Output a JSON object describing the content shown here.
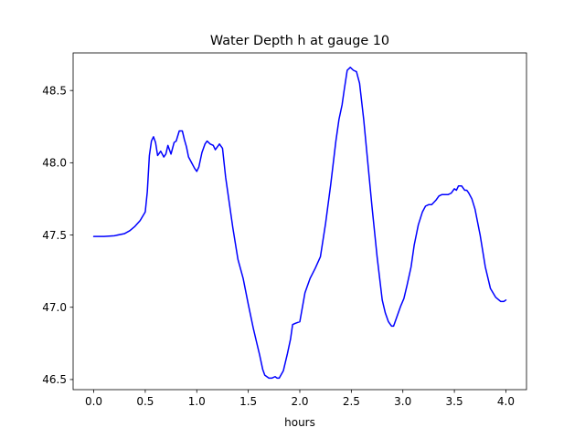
{
  "chart_data": {
    "type": "line",
    "title": "Water Depth h at gauge 10",
    "xlabel": "hours",
    "ylabel": "",
    "xlim": [
      -0.2,
      4.2
    ],
    "ylim": [
      46.43,
      48.76
    ],
    "xticks": [
      0.0,
      0.5,
      1.0,
      1.5,
      2.0,
      2.5,
      3.0,
      3.5,
      4.0
    ],
    "xtick_labels": [
      "0.0",
      "0.5",
      "1.0",
      "1.5",
      "2.0",
      "2.5",
      "3.0",
      "3.5",
      "4.0"
    ],
    "yticks": [
      46.5,
      47.0,
      47.5,
      48.0,
      48.5
    ],
    "ytick_labels": [
      "46.5",
      "47.0",
      "47.5",
      "48.0",
      "48.5"
    ],
    "grid": false,
    "colors": {
      "line": "#0000ff",
      "axes": "#000000",
      "background": "#ffffff"
    },
    "series": [
      {
        "x": [
          0.0,
          0.1,
          0.2,
          0.3,
          0.35,
          0.4,
          0.45,
          0.5,
          0.52,
          0.54,
          0.56,
          0.58,
          0.6,
          0.62,
          0.65,
          0.68,
          0.7,
          0.72,
          0.75,
          0.78,
          0.8,
          0.83,
          0.86,
          0.88,
          0.9,
          0.92,
          0.95,
          0.98,
          1.0,
          1.02,
          1.05,
          1.08,
          1.1,
          1.13,
          1.16,
          1.18,
          1.2,
          1.22,
          1.25,
          1.28,
          1.3,
          1.35,
          1.4,
          1.45,
          1.5,
          1.55,
          1.58,
          1.61,
          1.64,
          1.66,
          1.7,
          1.73,
          1.76,
          1.78,
          1.8,
          1.84,
          1.88,
          1.91,
          1.93,
          1.96,
          2.0,
          2.05,
          2.1,
          2.15,
          2.2,
          2.25,
          2.3,
          2.35,
          2.38,
          2.41,
          2.43,
          2.46,
          2.49,
          2.52,
          2.55,
          2.58,
          2.62,
          2.66,
          2.7,
          2.75,
          2.8,
          2.83,
          2.86,
          2.89,
          2.91,
          2.94,
          2.98,
          3.01,
          3.04,
          3.08,
          3.11,
          3.15,
          3.19,
          3.22,
          3.25,
          3.28,
          3.32,
          3.35,
          3.38,
          3.4,
          3.44,
          3.47,
          3.5,
          3.52,
          3.54,
          3.57,
          3.6,
          3.62,
          3.64,
          3.67,
          3.7,
          3.75,
          3.8,
          3.85,
          3.9,
          3.95,
          3.98,
          4.0
        ],
        "y": [
          47.49,
          47.49,
          47.495,
          47.51,
          47.53,
          47.56,
          47.6,
          47.66,
          47.8,
          48.05,
          48.15,
          48.18,
          48.14,
          48.05,
          48.08,
          48.04,
          48.06,
          48.12,
          48.06,
          48.14,
          48.15,
          48.22,
          48.22,
          48.16,
          48.11,
          48.04,
          48.0,
          47.96,
          47.94,
          47.97,
          48.07,
          48.13,
          48.15,
          48.13,
          48.12,
          48.09,
          48.11,
          48.13,
          48.1,
          47.9,
          47.8,
          47.55,
          47.33,
          47.2,
          47.02,
          46.85,
          46.76,
          46.67,
          46.57,
          46.53,
          46.51,
          46.51,
          46.52,
          46.51,
          46.51,
          46.56,
          46.68,
          46.78,
          46.88,
          46.89,
          46.9,
          47.1,
          47.2,
          47.27,
          47.35,
          47.58,
          47.85,
          48.15,
          48.3,
          48.4,
          48.5,
          48.64,
          48.66,
          48.64,
          48.63,
          48.55,
          48.3,
          48.0,
          47.7,
          47.35,
          47.05,
          46.96,
          46.9,
          46.87,
          46.87,
          46.93,
          47.01,
          47.06,
          47.15,
          47.28,
          47.43,
          47.57,
          47.66,
          47.7,
          47.71,
          47.71,
          47.74,
          47.77,
          47.78,
          47.78,
          47.78,
          47.79,
          47.82,
          47.81,
          47.84,
          47.84,
          47.81,
          47.81,
          47.79,
          47.75,
          47.68,
          47.5,
          47.28,
          47.13,
          47.07,
          47.04,
          47.04,
          47.05
        ]
      }
    ]
  }
}
